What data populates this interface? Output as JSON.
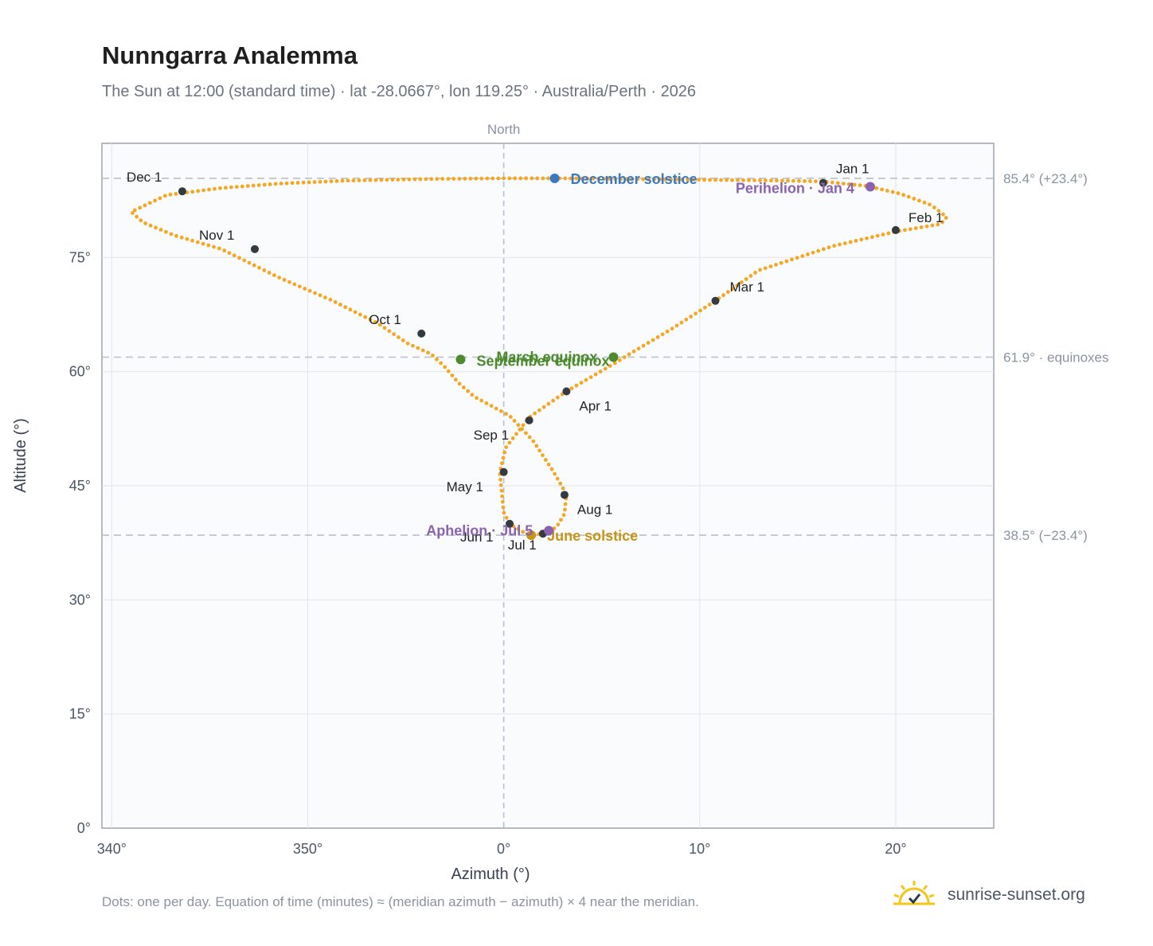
{
  "header": {
    "title": "Nunngarra Analemma",
    "subtitle": "The Sun at 12:00 (standard time) · lat -28.0667°, lon 119.25° · Australia/Perth · 2026"
  },
  "footnote": "Dots: one per day. Equation of time (minutes) ≈ (meridian azimuth − azimuth) × 4 near the meridian.",
  "brand": {
    "name": "sunrise-sunset.org"
  },
  "colors": {
    "path": "#f5a623",
    "month_marker": "#353a40",
    "solstice_dec": "#3a78c2",
    "solstice_jun": "#c89412",
    "equinox": "#4d8a2e",
    "apsis": "#8a62b0",
    "grid": "#e5e7eb",
    "reference_line": "#b8c0c9",
    "plot_bg": "#f9fbfd",
    "plot_border": "#9aa4b1"
  },
  "chart_data": {
    "type": "scatter",
    "title": "Nunngarra Analemma",
    "xlabel": "Azimuth (°)",
    "ylabel": "Altitude (°)",
    "x_tick_labels": [
      "340°",
      "350°",
      "0°",
      "10°",
      "20°"
    ],
    "x_tick_values": [
      340,
      350,
      360,
      370,
      380
    ],
    "y_tick_labels": [
      "0°",
      "15°",
      "30°",
      "45°",
      "60°",
      "75°"
    ],
    "y_tick_values": [
      0,
      15,
      30,
      45,
      60,
      75
    ],
    "xlim": [
      339.5,
      385
    ],
    "ylim": [
      0,
      90
    ],
    "grid": true,
    "meridian": {
      "azimuth": 360,
      "label": "North"
    },
    "reference_lines": [
      {
        "altitude": 85.4,
        "label": "85.4° (+23.4°)"
      },
      {
        "altitude": 61.9,
        "label": "61.9° · equinoxes"
      },
      {
        "altitude": 38.5,
        "label": "38.5° (−23.4°)"
      }
    ],
    "series": [
      {
        "points": [
          [
            376.2,
            85.0
          ],
          [
            378.5,
            84.4
          ],
          [
            380.2,
            83.4
          ],
          [
            381.8,
            81.9
          ],
          [
            382.6,
            80.3
          ],
          [
            382.3,
            79.4
          ],
          [
            380.0,
            78.4
          ],
          [
            376.8,
            76.5
          ],
          [
            373.0,
            73.3
          ],
          [
            370.8,
            69.3
          ],
          [
            368.5,
            65.5
          ],
          [
            366.6,
            62.6
          ],
          [
            365.6,
            61.0
          ],
          [
            363.2,
            57.4
          ],
          [
            361.3,
            54.0
          ],
          [
            360.1,
            50.0
          ],
          [
            359.8,
            46.8
          ],
          [
            359.9,
            44.1
          ],
          [
            360.0,
            41.5
          ],
          [
            360.3,
            40.0
          ],
          [
            361.0,
            38.9
          ],
          [
            361.4,
            38.5
          ],
          [
            362.2,
            38.8
          ],
          [
            362.7,
            39.6
          ],
          [
            363.1,
            41.3
          ],
          [
            363.2,
            43.9
          ],
          [
            362.5,
            47.0
          ],
          [
            361.5,
            50.9
          ],
          [
            360.3,
            54.2
          ],
          [
            358.5,
            56.7
          ],
          [
            357.7,
            58.5
          ],
          [
            357.0,
            60.6
          ],
          [
            356.3,
            62.3
          ],
          [
            355.1,
            63.7
          ],
          [
            353.6,
            66.3
          ],
          [
            351.2,
            69.4
          ],
          [
            348.5,
            72.4
          ],
          [
            345.6,
            76.1
          ],
          [
            343.2,
            77.9
          ],
          [
            341.6,
            79.6
          ],
          [
            341.0,
            81.0
          ],
          [
            342.8,
            83.2
          ],
          [
            345.5,
            84.1
          ],
          [
            348.5,
            84.7
          ],
          [
            352.0,
            85.1
          ],
          [
            356.0,
            85.3
          ],
          [
            360.0,
            85.4
          ],
          [
            363.0,
            85.4
          ],
          [
            366.5,
            85.3
          ],
          [
            370.5,
            85.2
          ],
          [
            374.0,
            85.1
          ],
          [
            376.2,
            85.0
          ]
        ]
      }
    ],
    "month_markers": [
      {
        "label": "Jan 1",
        "azimuth": 376.3,
        "altitude": 84.8
      },
      {
        "label": "Feb 1",
        "azimuth": 380.0,
        "altitude": 78.6
      },
      {
        "label": "Mar 1",
        "azimuth": 370.8,
        "altitude": 69.3
      },
      {
        "label": "Apr 1",
        "azimuth": 363.2,
        "altitude": 57.4
      },
      {
        "label": "May 1",
        "azimuth": 360.0,
        "altitude": 46.8
      },
      {
        "label": "Jun 1",
        "azimuth": 360.3,
        "altitude": 40.0
      },
      {
        "label": "Jul 1",
        "azimuth": 362.0,
        "altitude": 38.7
      },
      {
        "label": "Aug 1",
        "azimuth": 363.1,
        "altitude": 43.8
      },
      {
        "label": "Sep 1",
        "azimuth": 361.3,
        "altitude": 53.6
      },
      {
        "label": "Oct 1",
        "azimuth": 355.8,
        "altitude": 65.0
      },
      {
        "label": "Nov 1",
        "azimuth": 347.3,
        "altitude": 76.1
      },
      {
        "label": "Dec 1",
        "azimuth": 343.6,
        "altitude": 83.7
      }
    ],
    "events": [
      {
        "label": "December solstice",
        "azimuth": 362.6,
        "altitude": 85.4,
        "color_key": "solstice_dec"
      },
      {
        "label": "Perihelion · Jan 4",
        "azimuth": 378.7,
        "altitude": 84.3,
        "color_key": "apsis"
      },
      {
        "label": "March equinox",
        "azimuth": 365.6,
        "altitude": 61.9,
        "color_key": "equinox"
      },
      {
        "label": "September equinox",
        "azimuth": 357.8,
        "altitude": 61.6,
        "color_key": "equinox"
      },
      {
        "label": "June solstice",
        "azimuth": 361.4,
        "altitude": 38.5,
        "color_key": "solstice_jun"
      },
      {
        "label": "Aphelion · Jul 5",
        "azimuth": 362.3,
        "altitude": 39.1,
        "color_key": "apsis"
      }
    ]
  }
}
